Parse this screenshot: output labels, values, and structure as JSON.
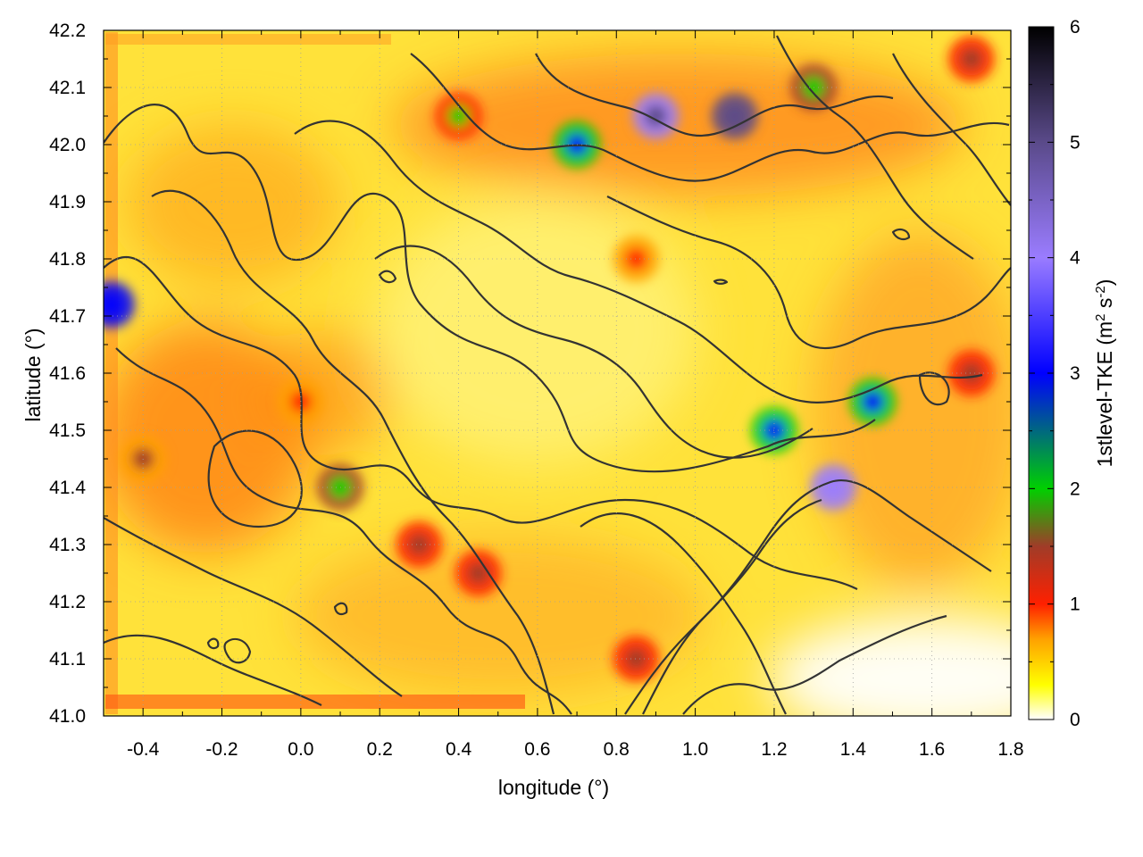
{
  "chart_data": {
    "type": "heatmap",
    "title": "",
    "xlabel": "longitude (°)",
    "ylabel": "latitude (°)",
    "colorbar_label_parts": [
      "1stlevel-TKE (m",
      "2",
      " s",
      "-2",
      ")"
    ],
    "xlim": [
      -0.5,
      1.8
    ],
    "ylim": [
      41.0,
      42.2
    ],
    "x_ticks": [
      -0.4,
      -0.2,
      0.0,
      0.2,
      0.4,
      0.6,
      0.8,
      1.0,
      1.2,
      1.4,
      1.6,
      1.8
    ],
    "x_tick_labels": [
      "-0.4",
      "-0.2",
      "0.0",
      "0.2",
      "0.4",
      "0.6",
      "0.8",
      "1.0",
      "1.2",
      "1.4",
      "1.6",
      "1.8"
    ],
    "y_ticks": [
      41.0,
      41.1,
      41.2,
      41.3,
      41.4,
      41.5,
      41.6,
      41.7,
      41.8,
      41.9,
      42.0,
      42.1,
      42.2
    ],
    "y_tick_labels": [
      "41.0",
      "41.1",
      "41.2",
      "41.3",
      "41.4",
      "41.5",
      "41.6",
      "41.7",
      "41.8",
      "41.9",
      "42.0",
      "42.1",
      "42.2"
    ],
    "colorbar_range": [
      0,
      6
    ],
    "colorbar_ticks": [
      0,
      1,
      2,
      3,
      4,
      5,
      6
    ],
    "colorbar_tick_labels": [
      "0",
      "1",
      "2",
      "3",
      "4",
      "5",
      "6"
    ],
    "colorbar_stops": [
      {
        "value": 0.0,
        "color": "#ffffff"
      },
      {
        "value": 0.3,
        "color": "#ffff00"
      },
      {
        "value": 0.7,
        "color": "#ffa000"
      },
      {
        "value": 1.0,
        "color": "#ff2000"
      },
      {
        "value": 1.5,
        "color": "#a03c28"
      },
      {
        "value": 2.0,
        "color": "#00d000"
      },
      {
        "value": 3.0,
        "color": "#0000ff"
      },
      {
        "value": 4.0,
        "color": "#9a7cff"
      },
      {
        "value": 5.0,
        "color": "#5a4a8a"
      },
      {
        "value": 6.0,
        "color": "#000000"
      }
    ],
    "contour_color": "#333333",
    "grid": true,
    "hotspots": [
      {
        "lon": 0.4,
        "lat": 42.05,
        "value": 1.6
      },
      {
        "lon": 0.7,
        "lat": 42.0,
        "value": 2.2
      },
      {
        "lon": 0.9,
        "lat": 42.05,
        "value": 4.5
      },
      {
        "lon": 1.1,
        "lat": 42.05,
        "value": 4.8
      },
      {
        "lon": 1.3,
        "lat": 42.1,
        "value": 1.8
      },
      {
        "lon": 1.7,
        "lat": 42.15,
        "value": 1.5
      },
      {
        "lon": 1.45,
        "lat": 41.55,
        "value": 2.5
      },
      {
        "lon": 1.35,
        "lat": 41.4,
        "value": 3.8
      },
      {
        "lon": 1.2,
        "lat": 41.5,
        "value": 2.2
      },
      {
        "lon": 0.1,
        "lat": 41.4,
        "value": 1.8
      },
      {
        "lon": 0.3,
        "lat": 41.3,
        "value": 1.4
      },
      {
        "lon": 0.45,
        "lat": 41.25,
        "value": 1.5
      },
      {
        "lon": 0.85,
        "lat": 41.1,
        "value": 1.4
      },
      {
        "lon": -0.48,
        "lat": 41.72,
        "value": 3.0
      },
      {
        "lon": -0.4,
        "lat": 41.45,
        "value": 1.1
      },
      {
        "lon": 0.0,
        "lat": 41.55,
        "value": 0.9
      },
      {
        "lon": 0.85,
        "lat": 41.8,
        "value": 0.9
      },
      {
        "lon": 1.7,
        "lat": 41.6,
        "value": 1.3
      }
    ]
  }
}
